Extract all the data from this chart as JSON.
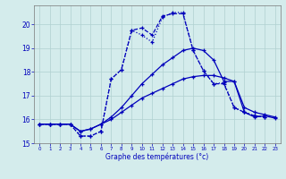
{
  "bg_color": "#d4ecec",
  "grid_color": "#b0d0d0",
  "line_color": "#0000bb",
  "xlabel": "Graphe des températures (°c)",
  "xlim": [
    -0.5,
    23.5
  ],
  "ylim": [
    15,
    20.8
  ],
  "yticks": [
    15,
    16,
    17,
    18,
    19,
    20
  ],
  "xticks": [
    0,
    1,
    2,
    3,
    4,
    5,
    6,
    7,
    8,
    9,
    10,
    11,
    12,
    13,
    14,
    15,
    16,
    17,
    18,
    19,
    20,
    21,
    22,
    23
  ],
  "curve1_x": [
    0,
    1,
    2,
    3,
    4,
    5,
    6,
    7,
    8,
    9,
    10,
    11,
    12,
    13,
    14,
    15,
    16,
    17,
    18,
    19,
    20,
    21,
    22,
    23
  ],
  "curve1_y": [
    15.8,
    15.8,
    15.8,
    15.8,
    15.3,
    15.3,
    15.5,
    17.7,
    18.1,
    19.75,
    19.85,
    19.55,
    20.35,
    20.45,
    20.45,
    18.9,
    18.05,
    17.5,
    17.5,
    16.5,
    16.3,
    16.15,
    16.1,
    null
  ],
  "curve2_x": [
    0,
    1,
    2,
    3,
    4,
    5,
    6,
    7,
    8,
    9,
    10,
    11,
    12,
    13,
    14,
    15,
    16,
    17,
    18,
    19,
    20,
    21,
    22,
    23
  ],
  "curve2_y": [
    15.8,
    15.8,
    15.8,
    15.8,
    15.3,
    15.3,
    15.5,
    17.7,
    18.1,
    19.75,
    19.55,
    19.25,
    20.3,
    20.5,
    20.5,
    18.9,
    18.05,
    17.5,
    17.55,
    16.5,
    16.3,
    16.15,
    16.1,
    null
  ],
  "curve3_x": [
    0,
    1,
    2,
    3,
    4,
    5,
    6,
    7,
    8,
    9,
    10,
    11,
    12,
    13,
    14,
    15,
    16,
    17,
    18,
    19,
    20,
    21,
    22,
    23
  ],
  "curve3_y": [
    15.8,
    15.8,
    15.8,
    15.8,
    15.5,
    15.6,
    15.8,
    16.1,
    16.5,
    17.0,
    17.5,
    17.9,
    18.3,
    18.6,
    18.9,
    19.0,
    18.9,
    18.5,
    17.6,
    17.6,
    16.5,
    16.3,
    16.2,
    16.1
  ],
  "curve4_x": [
    0,
    1,
    2,
    3,
    4,
    5,
    6,
    7,
    8,
    9,
    10,
    11,
    12,
    13,
    14,
    15,
    16,
    17,
    18,
    19,
    20,
    21,
    22,
    23
  ],
  "curve4_y": [
    15.8,
    15.8,
    15.8,
    15.8,
    15.5,
    15.6,
    15.8,
    16.0,
    16.3,
    16.6,
    16.9,
    17.1,
    17.3,
    17.5,
    17.7,
    17.8,
    17.85,
    17.85,
    17.75,
    17.6,
    16.3,
    16.1,
    16.15,
    16.05
  ]
}
